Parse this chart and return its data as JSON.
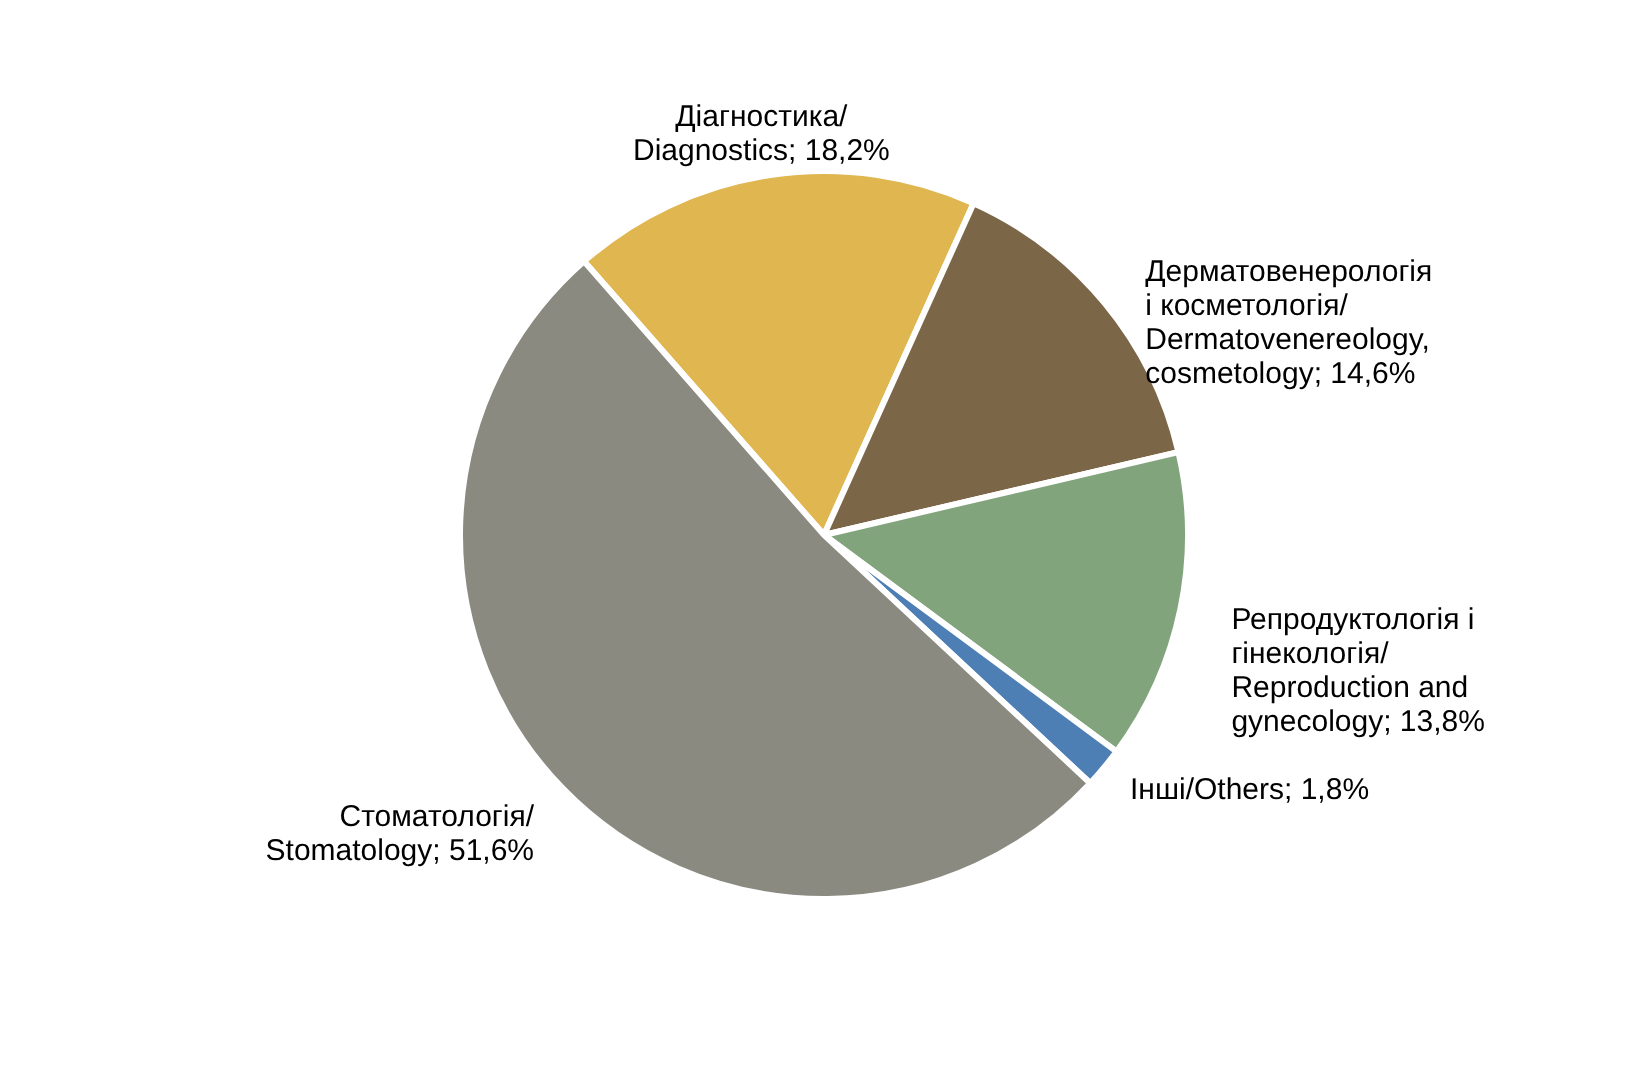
{
  "chart_data": {
    "type": "pie",
    "categories": [
      "Діагностика/ Diagnostics",
      "Дерматовенерологія і косметологія/ Dermatovenereology,cosmetology",
      "Репродуктологія і гінекологія/ Reproduction and gynecology",
      "Інші/Others",
      "Стоматологія/ Stomatology"
    ],
    "value_labels": [
      "18,2%",
      "14,6%",
      "13,8%",
      "1,8%",
      "51,6%"
    ],
    "values": [
      18.2,
      14.6,
      13.8,
      1.8,
      51.6
    ],
    "colors": [
      "#e0b650",
      "#7b6648",
      "#82a47c",
      "#4d7fb4",
      "#8b8a80"
    ]
  }
}
